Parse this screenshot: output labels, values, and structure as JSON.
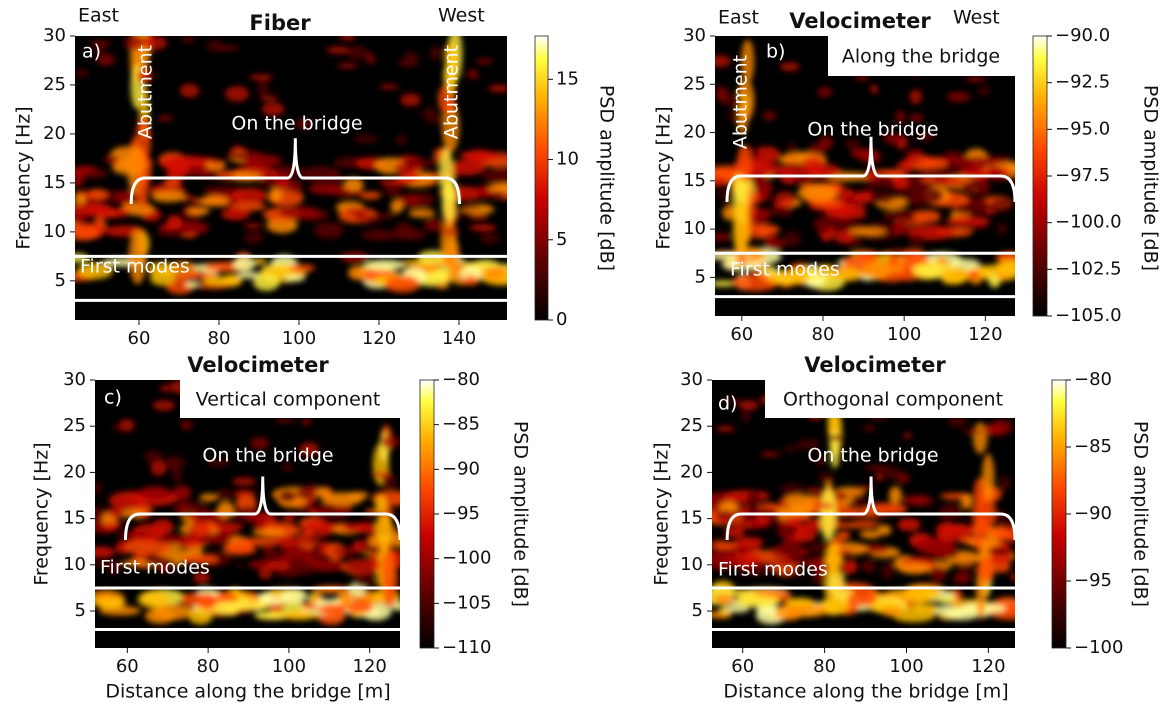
{
  "chart_data": [
    {
      "type": "heatmap",
      "title": "Fiber",
      "panel_label": "a)",
      "annotations": [
        "East",
        "West",
        "Abutment",
        "Abutment",
        "On the bridge",
        "First modes"
      ],
      "y_label": "Frequency [Hz]",
      "xlim": [
        44,
        152
      ],
      "ylim": [
        1,
        30
      ],
      "xticks": [
        60,
        80,
        100,
        120,
        140
      ],
      "yticks": [
        5,
        10,
        15,
        20,
        25,
        30
      ],
      "clim": [
        0,
        17.7
      ],
      "cticks": [
        0,
        5,
        10,
        15
      ],
      "colorbar_label": "PSD amplitude [dB]"
    },
    {
      "type": "heatmap",
      "title": "Velocimeter",
      "subtitle": "Along the bridge",
      "panel_label": "b)",
      "annotations": [
        "East",
        "West",
        "Abutment",
        "On the bridge",
        "First modes"
      ],
      "y_label": "Frequency [Hz]",
      "xlim": [
        53.4,
        127.3
      ],
      "ylim": [
        1,
        30
      ],
      "xticks": [
        60,
        80,
        100,
        120
      ],
      "yticks": [
        5,
        10,
        15,
        20,
        25,
        30
      ],
      "clim": [
        -105,
        -90
      ],
      "cticks": [
        {
          "value": -105,
          "label": "−105.0"
        },
        {
          "value": -102.5,
          "label": "−102.5"
        },
        {
          "value": -100,
          "label": "−100.0"
        },
        {
          "value": -97.5,
          "label": "−97.5"
        },
        {
          "value": -95,
          "label": "−95.0"
        },
        {
          "value": -92.5,
          "label": "−92.5"
        },
        {
          "value": -90,
          "label": "−90.0"
        }
      ],
      "colorbar_label": "PSD amplitude [dB]"
    },
    {
      "type": "heatmap",
      "title": "Velocimeter",
      "subtitle": "Vertical component",
      "panel_label": "c)",
      "annotations": [
        "On the bridge",
        "First modes"
      ],
      "x_label": "Distance along the bridge [m]",
      "y_label": "Frequency [Hz]",
      "xlim": [
        52,
        127.5
      ],
      "ylim": [
        1,
        30
      ],
      "xticks": [
        60,
        80,
        100,
        120
      ],
      "yticks": [
        5,
        10,
        15,
        20,
        25,
        30
      ],
      "clim": [
        -110,
        -80
      ],
      "cticks": [
        {
          "value": -110,
          "label": "−110"
        },
        {
          "value": -105,
          "label": "−105"
        },
        {
          "value": -100,
          "label": "−100"
        },
        {
          "value": -95,
          "label": "−95"
        },
        {
          "value": -90,
          "label": "−90"
        },
        {
          "value": -85,
          "label": "−85"
        },
        {
          "value": -80,
          "label": "−80"
        }
      ],
      "colorbar_label": "PSD amplitude [dB]"
    },
    {
      "type": "heatmap",
      "title": "Velocimeter",
      "subtitle": "Orthogonal component",
      "panel_label": "d)",
      "annotations": [
        "On the bridge",
        "First modes"
      ],
      "x_label": "Distance along the bridge [m]",
      "y_label": "Frequency [Hz]",
      "xlim": [
        52.5,
        126.5
      ],
      "ylim": [
        1,
        30
      ],
      "xticks": [
        60,
        80,
        100,
        120
      ],
      "yticks": [
        5,
        10,
        15,
        20,
        25,
        30
      ],
      "clim": [
        -100,
        -80
      ],
      "cticks": [
        {
          "value": -100,
          "label": "−100"
        },
        {
          "value": -95,
          "label": "−95"
        },
        {
          "value": -90,
          "label": "−90"
        },
        {
          "value": -85,
          "label": "−85"
        },
        {
          "value": -80,
          "label": "−80"
        }
      ],
      "colorbar_label": "PSD amplitude [dB]"
    }
  ]
}
